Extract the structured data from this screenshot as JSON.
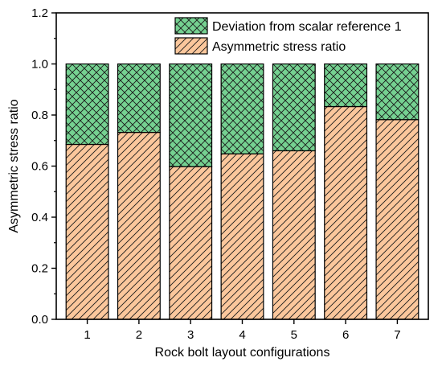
{
  "chart_data": {
    "type": "bar",
    "stacked": true,
    "categories": [
      "1",
      "2",
      "3",
      "4",
      "5",
      "6",
      "7"
    ],
    "series": [
      {
        "name": "Asymmetric stress ratio",
        "values": [
          0.685,
          0.732,
          0.598,
          0.648,
          0.66,
          0.833,
          0.782
        ],
        "color": "#fbc79c",
        "pattern": "diagonal-hatch"
      },
      {
        "name": "Deviation from scalar reference 1",
        "values": [
          0.315,
          0.268,
          0.402,
          0.352,
          0.34,
          0.167,
          0.218
        ],
        "color": "#75d191",
        "pattern": "cross-hatch"
      }
    ],
    "xlabel": "Rock bolt layout configurations",
    "ylabel": "Asymmetric stress ratio",
    "ylim": [
      0,
      1.2
    ],
    "yticks": [
      "0.0",
      "0.2",
      "0.4",
      "0.6",
      "0.8",
      "1.0",
      "1.2"
    ],
    "grid": false,
    "legend_position": "top-left",
    "legend_order": [
      "Deviation from scalar reference 1",
      "Asymmetric stress ratio"
    ]
  }
}
